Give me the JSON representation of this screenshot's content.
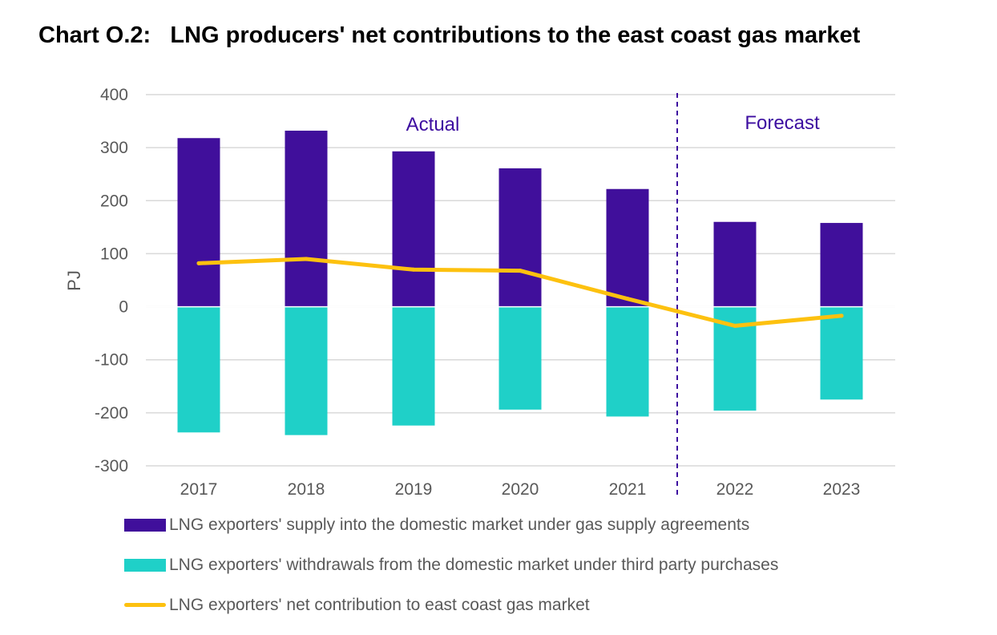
{
  "title": "Chart O.2:   LNG producers' net contributions to the east coast gas market",
  "chart_data": {
    "type": "bar",
    "categories": [
      "2017",
      "2018",
      "2019",
      "2020",
      "2021",
      "2022",
      "2023"
    ],
    "series": [
      {
        "name": "LNG exporters' supply into the domestic market under gas supply agreements",
        "type": "bar",
        "color": "#400f9b",
        "values": [
          318,
          332,
          293,
          261,
          222,
          160,
          158
        ]
      },
      {
        "name": "LNG exporters' withdrawals from the domestic market under third party purchases",
        "type": "bar",
        "color": "#1fd0c8",
        "values": [
          -237,
          -242,
          -224,
          -194,
          -207,
          -196,
          -175
        ]
      },
      {
        "name": "LNG exporters' net contribution to east coast gas market",
        "type": "line",
        "color": "#fdc10f",
        "values": [
          82,
          90,
          70,
          68,
          15,
          -36,
          -17
        ]
      }
    ],
    "ylabel": "PJ",
    "xlabel": "",
    "ylim": [
      -300,
      400
    ],
    "yticks": [
      "400",
      "300",
      "200",
      "100",
      "0",
      "-100",
      "-200",
      "-300"
    ],
    "grid": true,
    "stacked": true,
    "annotations": [
      "Actual",
      "Forecast"
    ],
    "divider": "dashed vertical line between 2021 and 2022",
    "legend": "bottom"
  }
}
